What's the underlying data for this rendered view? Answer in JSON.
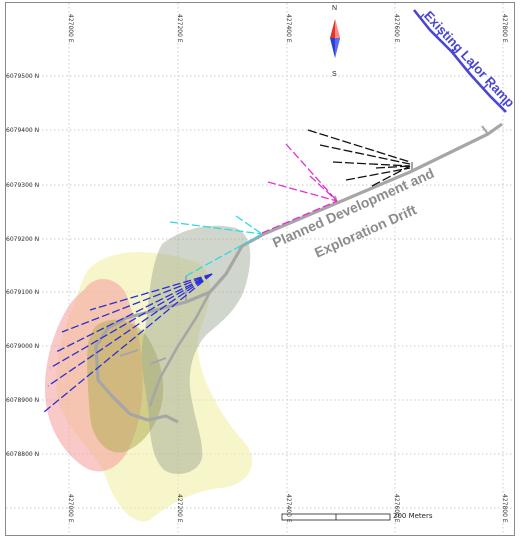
{
  "map": {
    "north_arrow": {
      "top_label": "N",
      "bottom_label": "S"
    },
    "northings": [
      "6079500 N",
      "6079400 N",
      "6079300 N",
      "6079200 N",
      "6079100 N",
      "6079000 N",
      "6078900 N",
      "6078800 N"
    ],
    "eastings": [
      "427000 E",
      "427200 E",
      "427400 E",
      "427600 E",
      "427800 E"
    ],
    "scale_bar": {
      "label": "200 Meters"
    },
    "labels": {
      "ramp": "Existing Lalor Ramp",
      "drift_line1": "Planned Development and",
      "drift_line2": "Exploration Drift"
    },
    "colors": {
      "drift": "#a6a6a6",
      "ramp": "#4a46d0",
      "holes_black": "#111111",
      "holes_magenta": "#e52fd6",
      "holes_cyan": "#2fd9e6",
      "holes_blue": "#2b2fd6"
    }
  }
}
